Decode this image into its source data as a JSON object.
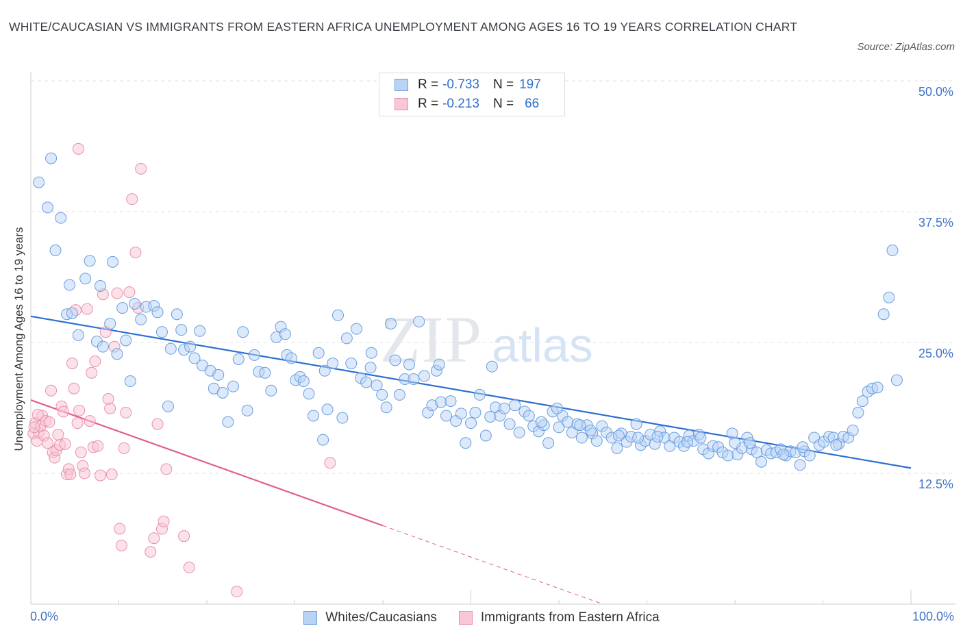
{
  "title": "WHITE/CAUCASIAN VS IMMIGRANTS FROM EASTERN AFRICA UNEMPLOYMENT AMONG AGES 16 TO 19 YEARS CORRELATION CHART",
  "source": "Source: ZipAtlas.com",
  "watermark": {
    "zip": "ZIP",
    "atlas": "atlas"
  },
  "legend_top": {
    "rows": [
      {
        "r_label": "R =",
        "r_value": "-0.733",
        "n_label": "N =",
        "n_value": "197"
      },
      {
        "r_label": "R =",
        "r_value": "-0.213",
        "n_label": "N =",
        "n_value": "66"
      }
    ]
  },
  "colors": {
    "blue_fill": "#b9d3f5",
    "blue_stroke": "#6a9de0",
    "blue_line": "#2b6fd1",
    "pink_fill": "#f8c6d4",
    "pink_stroke": "#ea8fab",
    "pink_line": "#e0608b",
    "axis_text": "#3d72c9",
    "grid": "#dde1e6"
  },
  "chart_data": {
    "type": "scatter",
    "title": "WHITE/CAUCASIAN VS IMMIGRANTS FROM EASTERN AFRICA UNEMPLOYMENT AMONG AGES 16 TO 19 YEARS CORRELATION CHART",
    "xlabel": "",
    "ylabel": "Unemployment Among Ages 16 to 19 years",
    "x_tick_labels": [
      "0.0%",
      "100.0%"
    ],
    "y_tick_labels": [
      "12.5%",
      "25.0%",
      "37.5%",
      "50.0%"
    ],
    "y_ticks": [
      12.5,
      25.0,
      37.5,
      50.0
    ],
    "xlim": [
      0,
      100
    ],
    "ylim": [
      0,
      50
    ],
    "grid": true,
    "legend_position": "bottom",
    "series": [
      {
        "name": "Whites/Caucasians",
        "color": "blue",
        "r": -0.733,
        "n": 197,
        "trend": [
          [
            0,
            27.5
          ],
          [
            100,
            13.0
          ]
        ],
        "points": [
          [
            0.9,
            40.3
          ],
          [
            2.3,
            42.6
          ],
          [
            1.9,
            37.9
          ],
          [
            3.4,
            36.9
          ],
          [
            2.8,
            33.8
          ],
          [
            4.4,
            30.5
          ],
          [
            6.2,
            31.1
          ],
          [
            6.7,
            32.8
          ],
          [
            7.9,
            30.4
          ],
          [
            9.3,
            32.7
          ],
          [
            4.1,
            27.7
          ],
          [
            4.7,
            27.8
          ],
          [
            5.4,
            25.7
          ],
          [
            7.5,
            25.1
          ],
          [
            8.2,
            24.6
          ],
          [
            9.0,
            26.8
          ],
          [
            9.8,
            23.9
          ],
          [
            10.4,
            28.3
          ],
          [
            10.8,
            25.2
          ],
          [
            11.3,
            21.3
          ],
          [
            11.8,
            28.7
          ],
          [
            12.5,
            27.2
          ],
          [
            13.1,
            28.4
          ],
          [
            14.0,
            28.5
          ],
          [
            14.4,
            27.9
          ],
          [
            14.9,
            26.0
          ],
          [
            15.6,
            18.9
          ],
          [
            15.9,
            24.4
          ],
          [
            16.6,
            27.7
          ],
          [
            17.1,
            26.2
          ],
          [
            17.4,
            24.3
          ],
          [
            18.1,
            24.6
          ],
          [
            18.6,
            23.5
          ],
          [
            19.2,
            26.1
          ],
          [
            19.5,
            22.8
          ],
          [
            20.4,
            22.3
          ],
          [
            20.8,
            20.6
          ],
          [
            21.3,
            21.9
          ],
          [
            21.8,
            20.2
          ],
          [
            22.4,
            17.4
          ],
          [
            23.0,
            20.8
          ],
          [
            23.6,
            23.4
          ],
          [
            24.1,
            26.0
          ],
          [
            24.6,
            18.5
          ],
          [
            25.4,
            23.8
          ],
          [
            25.9,
            22.2
          ],
          [
            26.6,
            22.1
          ],
          [
            27.3,
            20.4
          ],
          [
            27.9,
            25.5
          ],
          [
            28.4,
            26.5
          ],
          [
            29.1,
            23.8
          ],
          [
            29.6,
            23.5
          ],
          [
            30.1,
            21.4
          ],
          [
            30.6,
            21.7
          ],
          [
            31.0,
            21.3
          ],
          [
            31.6,
            20.1
          ],
          [
            32.1,
            18.0
          ],
          [
            32.7,
            24.0
          ],
          [
            33.2,
            15.7
          ],
          [
            33.7,
            18.6
          ],
          [
            34.3,
            23.0
          ],
          [
            34.9,
            27.6
          ],
          [
            35.4,
            17.8
          ],
          [
            35.9,
            25.4
          ],
          [
            36.4,
            23.0
          ],
          [
            37.0,
            26.3
          ],
          [
            37.5,
            21.6
          ],
          [
            38.1,
            21.2
          ],
          [
            38.6,
            22.6
          ],
          [
            39.3,
            20.9
          ],
          [
            39.9,
            20.0
          ],
          [
            40.4,
            18.8
          ],
          [
            40.9,
            26.8
          ],
          [
            41.4,
            23.3
          ],
          [
            41.9,
            20.0
          ],
          [
            42.5,
            21.5
          ],
          [
            43.0,
            22.9
          ],
          [
            43.5,
            21.5
          ],
          [
            44.1,
            27.0
          ],
          [
            44.7,
            21.8
          ],
          [
            45.1,
            18.3
          ],
          [
            45.6,
            19.0
          ],
          [
            46.1,
            22.3
          ],
          [
            46.6,
            19.3
          ],
          [
            47.2,
            18.0
          ],
          [
            47.7,
            19.4
          ],
          [
            48.3,
            17.5
          ],
          [
            48.9,
            18.2
          ],
          [
            49.4,
            15.4
          ],
          [
            50.0,
            17.3
          ],
          [
            50.5,
            18.3
          ],
          [
            51.0,
            20.0
          ],
          [
            51.7,
            16.1
          ],
          [
            52.2,
            17.9
          ],
          [
            52.8,
            18.8
          ],
          [
            53.3,
            18.0
          ],
          [
            53.8,
            18.7
          ],
          [
            54.4,
            17.2
          ],
          [
            55.0,
            19.0
          ],
          [
            55.5,
            16.4
          ],
          [
            56.1,
            18.4
          ],
          [
            56.6,
            18.0
          ],
          [
            57.1,
            17.0
          ],
          [
            57.7,
            16.5
          ],
          [
            58.3,
            17.1
          ],
          [
            58.8,
            15.4
          ],
          [
            59.3,
            18.4
          ],
          [
            60.0,
            16.9
          ],
          [
            60.4,
            18.0
          ],
          [
            61.0,
            17.4
          ],
          [
            61.5,
            16.4
          ],
          [
            62.1,
            17.2
          ],
          [
            62.6,
            15.9
          ],
          [
            63.2,
            17.1
          ],
          [
            63.8,
            16.3
          ],
          [
            64.3,
            15.6
          ],
          [
            64.9,
            17.0
          ],
          [
            65.4,
            16.4
          ],
          [
            66.0,
            15.9
          ],
          [
            66.6,
            14.9
          ],
          [
            67.1,
            16.3
          ],
          [
            67.7,
            15.5
          ],
          [
            68.2,
            16.0
          ],
          [
            68.8,
            17.2
          ],
          [
            69.3,
            15.2
          ],
          [
            69.8,
            15.6
          ],
          [
            70.4,
            16.2
          ],
          [
            70.9,
            15.3
          ],
          [
            71.5,
            16.5
          ],
          [
            72.0,
            15.9
          ],
          [
            72.6,
            15.1
          ],
          [
            73.1,
            15.9
          ],
          [
            73.7,
            15.5
          ],
          [
            74.2,
            15.1
          ],
          [
            74.8,
            16.1
          ],
          [
            75.3,
            15.6
          ],
          [
            75.9,
            16.2
          ],
          [
            76.4,
            14.8
          ],
          [
            77.0,
            14.4
          ],
          [
            77.5,
            15.1
          ],
          [
            78.1,
            15.0
          ],
          [
            78.6,
            14.5
          ],
          [
            79.2,
            14.2
          ],
          [
            79.7,
            16.3
          ],
          [
            80.3,
            14.3
          ],
          [
            80.8,
            14.9
          ],
          [
            81.4,
            15.9
          ],
          [
            81.9,
            14.8
          ],
          [
            82.5,
            14.5
          ],
          [
            83.0,
            13.6
          ],
          [
            83.6,
            14.7
          ],
          [
            84.1,
            14.4
          ],
          [
            84.7,
            14.5
          ],
          [
            85.2,
            14.8
          ],
          [
            85.8,
            14.2
          ],
          [
            86.3,
            14.6
          ],
          [
            86.9,
            14.5
          ],
          [
            87.4,
            13.3
          ],
          [
            87.9,
            14.6
          ],
          [
            88.5,
            14.2
          ],
          [
            89.0,
            15.9
          ],
          [
            89.6,
            15.2
          ],
          [
            90.1,
            15.5
          ],
          [
            90.7,
            16.0
          ],
          [
            91.2,
            15.9
          ],
          [
            91.8,
            15.3
          ],
          [
            92.3,
            16.0
          ],
          [
            92.9,
            15.9
          ],
          [
            93.4,
            16.6
          ],
          [
            94.0,
            18.3
          ],
          [
            94.5,
            19.4
          ],
          [
            95.1,
            20.3
          ],
          [
            95.6,
            20.6
          ],
          [
            96.2,
            20.7
          ],
          [
            96.9,
            27.7
          ],
          [
            97.5,
            29.3
          ],
          [
            97.9,
            33.8
          ],
          [
            98.4,
            21.4
          ],
          [
            59.8,
            18.7
          ],
          [
            28.9,
            25.8
          ],
          [
            33.4,
            22.3
          ],
          [
            38.7,
            24.0
          ],
          [
            46.4,
            22.9
          ],
          [
            52.4,
            22.7
          ],
          [
            58.0,
            17.4
          ],
          [
            63.6,
            16.6
          ],
          [
            69.0,
            15.9
          ],
          [
            74.6,
            15.5
          ],
          [
            80.0,
            15.4
          ],
          [
            85.5,
            14.3
          ],
          [
            62.4,
            17.1
          ],
          [
            66.8,
            16.1
          ],
          [
            71.2,
            16.0
          ],
          [
            76.1,
            15.9
          ],
          [
            81.7,
            15.4
          ],
          [
            87.7,
            15.0
          ],
          [
            91.5,
            15.2
          ]
        ]
      },
      {
        "name": "Immigrants from Eastern Africa",
        "color": "pink",
        "r": -0.213,
        "n": 66,
        "trend": [
          [
            0,
            19.5
          ],
          [
            40,
            7.5
          ]
        ],
        "trend_dashed": [
          [
            40,
            7.5
          ],
          [
            65,
            0.0
          ]
        ],
        "points": [
          [
            0.3,
            16.3
          ],
          [
            0.5,
            17.3
          ],
          [
            0.7,
            15.6
          ],
          [
            0.9,
            16.4
          ],
          [
            1.1,
            17.0
          ],
          [
            1.3,
            18.0
          ],
          [
            1.5,
            16.1
          ],
          [
            1.7,
            17.5
          ],
          [
            1.9,
            15.4
          ],
          [
            2.1,
            17.4
          ],
          [
            2.3,
            20.4
          ],
          [
            2.5,
            14.5
          ],
          [
            2.7,
            14.0
          ],
          [
            2.9,
            14.7
          ],
          [
            3.1,
            16.2
          ],
          [
            3.3,
            15.2
          ],
          [
            3.5,
            18.9
          ],
          [
            3.7,
            18.4
          ],
          [
            3.9,
            15.3
          ],
          [
            4.1,
            12.4
          ],
          [
            4.3,
            12.9
          ],
          [
            4.5,
            12.4
          ],
          [
            4.7,
            23.0
          ],
          [
            4.9,
            20.6
          ],
          [
            5.1,
            28.1
          ],
          [
            5.3,
            17.3
          ],
          [
            5.5,
            18.5
          ],
          [
            5.7,
            14.5
          ],
          [
            5.9,
            13.2
          ],
          [
            6.1,
            12.5
          ],
          [
            6.4,
            28.2
          ],
          [
            6.7,
            17.5
          ],
          [
            6.9,
            22.1
          ],
          [
            7.1,
            15.0
          ],
          [
            7.3,
            23.2
          ],
          [
            7.6,
            15.1
          ],
          [
            7.9,
            12.3
          ],
          [
            8.2,
            29.6
          ],
          [
            8.5,
            26.0
          ],
          [
            8.8,
            19.6
          ],
          [
            9.0,
            18.7
          ],
          [
            9.2,
            12.4
          ],
          [
            9.5,
            24.6
          ],
          [
            9.8,
            29.7
          ],
          [
            10.1,
            7.2
          ],
          [
            10.3,
            5.6
          ],
          [
            10.6,
            14.9
          ],
          [
            10.8,
            18.3
          ],
          [
            11.2,
            29.8
          ],
          [
            11.5,
            38.7
          ],
          [
            11.9,
            33.6
          ],
          [
            12.2,
            28.3
          ],
          [
            12.5,
            41.6
          ],
          [
            13.6,
            5.0
          ],
          [
            14.0,
            6.3
          ],
          [
            14.4,
            17.2
          ],
          [
            14.9,
            7.2
          ],
          [
            15.1,
            7.9
          ],
          [
            15.4,
            12.9
          ],
          [
            17.4,
            6.5
          ],
          [
            18.0,
            3.5
          ],
          [
            23.4,
            1.2
          ],
          [
            34.0,
            13.5
          ],
          [
            5.4,
            43.5
          ],
          [
            0.4,
            16.9
          ],
          [
            0.8,
            18.1
          ]
        ]
      }
    ]
  },
  "bottom_legend": {
    "items": [
      {
        "label": "Whites/Caucasians"
      },
      {
        "label": "Immigrants from Eastern Africa"
      }
    ]
  },
  "x_axis": {
    "left_label": "0.0%",
    "right_label": "100.0%"
  }
}
